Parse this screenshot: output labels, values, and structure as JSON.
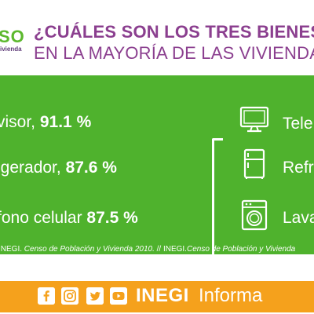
{
  "header": {
    "logo_text": "SO",
    "logo_subtext": "ivienda",
    "title_line1": "¿CUÁLES SON LOS TRES BIENES",
    "title_line2": "EN LA MAYORÍA DE LAS VIVIENDA"
  },
  "panel": {
    "items": [
      {
        "name": "visor, ",
        "value": "91.1 %"
      },
      {
        "name": "igerador, ",
        "value": "87.6 %"
      },
      {
        "name": "fono celular ",
        "value": "87.5 %"
      }
    ],
    "year": "2010",
    "labels": [
      "Tele",
      "Refr",
      "Lava"
    ],
    "icons": [
      "television-icon",
      "refrigerator-icon",
      "washing-machine-icon"
    ],
    "source_prefix": "INEGI. ",
    "source_title1": "Censo de Población y Vivienda 2010.",
    "source_sep": " // INEGI.",
    "source_title2": "Censo de Población y Vivienda"
  },
  "footer": {
    "social_icons": [
      "facebook-icon",
      "instagram-icon",
      "twitter-icon",
      "youtube-icon"
    ],
    "brand": "INEGI",
    "brand_suffix": "Informa"
  },
  "colors": {
    "green": "#4fb22d",
    "purple": "#8b3f8f",
    "orange": "#f5a11c",
    "year": "#f3a21f",
    "white": "#ffffff"
  }
}
